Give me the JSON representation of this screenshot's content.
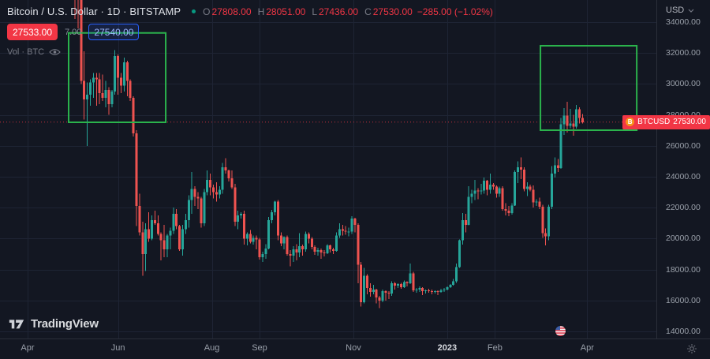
{
  "header": {
    "symbol_title": "Bitcoin / U.S. Dollar · 1D · BITSTAMP",
    "ohlc": {
      "o_label": "O",
      "o_value": "27808.00",
      "h_label": "H",
      "h_value": "28051.00",
      "l_label": "L",
      "l_value": "27436.00",
      "c_label": "C",
      "c_value": "27530.00",
      "change": "−285.00 (−1.02%)"
    },
    "sell_price": "27533.00",
    "spread": "7.00",
    "buy_price": "27540.00",
    "volume_label": "Vol · BTC"
  },
  "price_label": {
    "logo_letter": "B",
    "symbol": "BTCUSD",
    "price": "27530.00"
  },
  "footer": {
    "logo_text": "TradingView"
  },
  "chart_data": {
    "type": "candlestick",
    "title": "Bitcoin / U.S. Dollar",
    "symbol": "BTCUSD",
    "exchange": "BITSTAMP",
    "interval": "1D",
    "currency": "USD",
    "ylim": [
      14000,
      34000
    ],
    "grid": true,
    "grid_color": "#1e2434",
    "up_color": "#26a69a",
    "down_color": "#ef5350",
    "last_price": 27530,
    "last_price_color": "#f23645",
    "ohlc_current": {
      "open": 27808.0,
      "high": 28051.0,
      "low": 27436.0,
      "close": 27530.0,
      "change": -285.0,
      "change_pct": -1.02
    },
    "price_ticks": [
      "34000.00",
      "32000.00",
      "30000.00",
      "28000.00",
      "26000.00",
      "24000.00",
      "22000.00",
      "20000.00",
      "18000.00",
      "16000.00",
      "14000.00"
    ],
    "time_ticks": [
      {
        "label": "Apr",
        "i": -15.4
      },
      {
        "label": "Jun",
        "i": 14
      },
      {
        "label": "Aug",
        "i": 44.5
      },
      {
        "label": "Sep",
        "i": 60
      },
      {
        "label": "Nov",
        "i": 90.5
      },
      {
        "label": "2023",
        "i": 121,
        "year": true
      },
      {
        "label": "Feb",
        "i": 136.5
      },
      {
        "label": "Apr",
        "i": 166.5
      }
    ],
    "annotations": {
      "color": "#2bb24c",
      "boxes": [
        {
          "i1": -2.05,
          "i2": 29.5,
          "price_top": 33300,
          "price_bottom": 27520
        },
        {
          "i1": 151.3,
          "i2": 182.6,
          "price_top": 32470,
          "price_bottom": 27010
        }
      ]
    },
    "candles_ohlc": [
      [
        37900,
        40000,
        34200,
        36500
      ],
      [
        36500,
        36700,
        33600,
        35500
      ],
      [
        35500,
        35600,
        30000,
        30200
      ],
      [
        30200,
        32100,
        27700,
        29000
      ],
      [
        29000,
        30100,
        26000,
        29300
      ],
      [
        29300,
        30300,
        28600,
        30100
      ],
      [
        30100,
        30700,
        29100,
        30400
      ],
      [
        30400,
        30700,
        28600,
        30300
      ],
      [
        30300,
        30700,
        28700,
        29400
      ],
      [
        29400,
        30600,
        28900,
        29100
      ],
      [
        29100,
        30200,
        28500,
        29600
      ],
      [
        29600,
        29800,
        28000,
        28700
      ],
      [
        28700,
        29600,
        28500,
        29500
      ],
      [
        29500,
        32200,
        29300,
        31800
      ],
      [
        31800,
        31900,
        29300,
        30400
      ],
      [
        30400,
        30700,
        29400,
        29900
      ],
      [
        29900,
        31700,
        29500,
        31400
      ],
      [
        31400,
        31500,
        29200,
        30200
      ],
      [
        30200,
        30300,
        28900,
        29100
      ],
      [
        29100,
        29200,
        26600,
        26800
      ],
      [
        26800,
        27000,
        20800,
        22100
      ],
      [
        22100,
        22900,
        20200,
        20400
      ],
      [
        20400,
        21100,
        17600,
        19000
      ],
      [
        19000,
        21000,
        17900,
        20600
      ],
      [
        20600,
        21700,
        19800,
        20000
      ],
      [
        20000,
        21500,
        19900,
        21200
      ],
      [
        21200,
        21800,
        20900,
        21000
      ],
      [
        21000,
        21500,
        20200,
        20300
      ],
      [
        20300,
        20400,
        18600,
        19900
      ],
      [
        19900,
        20900,
        18800,
        19300
      ],
      [
        19300,
        20300,
        18800,
        20200
      ],
      [
        20200,
        20700,
        19300,
        20500
      ],
      [
        20500,
        22000,
        20300,
        21600
      ],
      [
        21600,
        21900,
        20600,
        20800
      ],
      [
        20800,
        20900,
        19200,
        19300
      ],
      [
        19300,
        20900,
        18900,
        20600
      ],
      [
        20600,
        21600,
        20300,
        21200
      ],
      [
        21200,
        22800,
        20700,
        22500
      ],
      [
        22500,
        24300,
        21600,
        23200
      ],
      [
        23200,
        23400,
        22100,
        22700
      ],
      [
        22700,
        23000,
        21900,
        22600
      ],
      [
        22600,
        22700,
        20700,
        21000
      ],
      [
        21000,
        23200,
        20800,
        23000
      ],
      [
        23000,
        24400,
        22800,
        23800
      ],
      [
        23800,
        24200,
        22800,
        23300
      ],
      [
        23300,
        23500,
        22600,
        23000
      ],
      [
        23000,
        23650,
        22400,
        22850
      ],
      [
        22850,
        23400,
        22600,
        23150
      ],
      [
        23150,
        24900,
        22900,
        24600
      ],
      [
        24600,
        25200,
        24200,
        24400
      ],
      [
        24400,
        24450,
        23700,
        23900
      ],
      [
        23900,
        24400,
        23200,
        23300
      ],
      [
        23300,
        23550,
        20800,
        21100
      ],
      [
        21100,
        21800,
        20600,
        21500
      ],
      [
        21500,
        21700,
        21300,
        21600
      ],
      [
        21600,
        21800,
        19600,
        20000
      ],
      [
        20000,
        20400,
        19550,
        20300
      ],
      [
        20300,
        20550,
        19700,
        19800
      ],
      [
        19800,
        20200,
        19600,
        20050
      ],
      [
        20050,
        20200,
        19300,
        19950
      ],
      [
        19950,
        20050,
        18650,
        18800
      ],
      [
        18800,
        19150,
        18500,
        19000
      ],
      [
        19000,
        19650,
        18700,
        19350
      ],
      [
        19350,
        21400,
        19300,
        21200
      ],
      [
        21200,
        21850,
        21000,
        21700
      ],
      [
        21700,
        22450,
        21500,
        22400
      ],
      [
        22400,
        22500,
        19900,
        20200
      ],
      [
        20200,
        20400,
        19500,
        19700
      ],
      [
        19700,
        20150,
        19300,
        20100
      ],
      [
        20100,
        20200,
        18900,
        19000
      ],
      [
        19000,
        19250,
        18200,
        18900
      ],
      [
        18900,
        19500,
        18500,
        19300
      ],
      [
        19300,
        19650,
        18600,
        19100
      ],
      [
        19100,
        20350,
        18800,
        19500
      ],
      [
        19500,
        19600,
        18900,
        19300
      ],
      [
        19300,
        20450,
        19150,
        20300
      ],
      [
        20300,
        20400,
        19700,
        20000
      ],
      [
        20000,
        20100,
        19300,
        19450
      ],
      [
        19450,
        19550,
        18950,
        19150
      ],
      [
        19150,
        19400,
        18900,
        19250
      ],
      [
        19250,
        19350,
        18700,
        19100
      ],
      [
        19100,
        19250,
        18850,
        19050
      ],
      [
        19050,
        19650,
        19000,
        19550
      ],
      [
        19550,
        19600,
        19100,
        19300
      ],
      [
        19300,
        19400,
        19000,
        19200
      ],
      [
        19200,
        20400,
        19150,
        20200
      ],
      [
        20200,
        21000,
        20050,
        20600
      ],
      [
        20600,
        20900,
        20200,
        20500
      ],
      [
        20500,
        20800,
        20250,
        20450
      ],
      [
        20450,
        20700,
        20150,
        20450
      ],
      [
        20450,
        21450,
        20300,
        21300
      ],
      [
        21300,
        21350,
        20400,
        20900
      ],
      [
        20900,
        21000,
        17100,
        18300
      ],
      [
        18300,
        18500,
        15600,
        15900
      ],
      [
        15900,
        18100,
        15800,
        17600
      ],
      [
        17600,
        17700,
        16400,
        16800
      ],
      [
        16800,
        17100,
        16250,
        16550
      ],
      [
        16550,
        17000,
        16400,
        16700
      ],
      [
        16700,
        16750,
        15800,
        16200
      ],
      [
        16200,
        16300,
        15500,
        16000
      ],
      [
        16000,
        16700,
        15900,
        16600
      ],
      [
        16600,
        16650,
        16000,
        16500
      ],
      [
        16500,
        16600,
        16100,
        16450
      ],
      [
        16450,
        17250,
        16300,
        17100
      ],
      [
        17100,
        17200,
        16700,
        16950
      ],
      [
        16950,
        17100,
        16800,
        17050
      ],
      [
        17050,
        17150,
        16750,
        16850
      ],
      [
        16850,
        17300,
        16800,
        17200
      ],
      [
        17200,
        17250,
        16900,
        17100
      ],
      [
        17100,
        18400,
        17050,
        17750
      ],
      [
        17750,
        17850,
        16550,
        16650
      ],
      [
        16650,
        16800,
        16500,
        16700
      ],
      [
        16700,
        16900,
        16550,
        16800
      ],
      [
        16800,
        16850,
        16350,
        16600
      ],
      [
        16600,
        16700,
        16450,
        16650
      ],
      [
        16650,
        16750,
        16500,
        16600
      ],
      [
        16600,
        16700,
        16400,
        16550
      ],
      [
        16550,
        16650,
        16450,
        16600
      ],
      [
        16600,
        16650,
        16350,
        16550
      ],
      [
        16550,
        16750,
        16500,
        16650
      ],
      [
        16650,
        16800,
        16550,
        16700
      ],
      [
        16700,
        16900,
        16650,
        16850
      ],
      [
        16850,
        17050,
        16800,
        17000
      ],
      [
        17000,
        17400,
        16950,
        17250
      ],
      [
        17250,
        18400,
        17150,
        18150
      ],
      [
        18150,
        19950,
        18100,
        19900
      ],
      [
        19900,
        21650,
        19600,
        21200
      ],
      [
        21200,
        21600,
        20400,
        20900
      ],
      [
        20900,
        23400,
        20850,
        22700
      ],
      [
        22700,
        23150,
        22300,
        22900
      ],
      [
        22900,
        23800,
        22500,
        23100
      ],
      [
        23100,
        23250,
        22550,
        23050
      ],
      [
        23050,
        23550,
        22850,
        23100
      ],
      [
        23100,
        23950,
        22900,
        23750
      ],
      [
        23750,
        23800,
        22800,
        23150
      ],
      [
        23150,
        24200,
        22900,
        23500
      ],
      [
        23500,
        23600,
        23150,
        23350
      ],
      [
        23350,
        23450,
        22650,
        22900
      ],
      [
        22900,
        23350,
        22700,
        23250
      ],
      [
        23250,
        23400,
        21800,
        21900
      ],
      [
        21900,
        22300,
        21500,
        21800
      ],
      [
        21800,
        22100,
        21450,
        21650
      ],
      [
        21650,
        22300,
        21550,
        22150
      ],
      [
        22150,
        24400,
        22100,
        24300
      ],
      [
        24300,
        25000,
        23600,
        24600
      ],
      [
        24600,
        25250,
        23850,
        24450
      ],
      [
        24450,
        24600,
        23050,
        23200
      ],
      [
        23200,
        23650,
        22750,
        23350
      ],
      [
        23350,
        23500,
        23050,
        23150
      ],
      [
        23150,
        23450,
        22000,
        22350
      ],
      [
        22350,
        22550,
        22100,
        22400
      ],
      [
        22400,
        22650,
        21900,
        22050
      ],
      [
        22050,
        22200,
        20050,
        20350
      ],
      [
        20350,
        20650,
        19550,
        20150
      ],
      [
        20150,
        22200,
        19900,
        22050
      ],
      [
        22050,
        24700,
        21900,
        24200
      ],
      [
        24200,
        25250,
        23950,
        24750
      ],
      [
        24750,
        25150,
        24300,
        24550
      ],
      [
        24550,
        27800,
        24500,
        27400
      ],
      [
        27400,
        28450,
        26700,
        27950
      ],
      [
        27950,
        28850,
        26850,
        27300
      ],
      [
        27300,
        28400,
        27150,
        27450
      ],
      [
        27450,
        28000,
        26650,
        27250
      ],
      [
        27250,
        28650,
        27100,
        28350
      ],
      [
        28350,
        28500,
        27450,
        27800
      ],
      [
        27808,
        28051,
        27436,
        27530
      ]
    ]
  }
}
